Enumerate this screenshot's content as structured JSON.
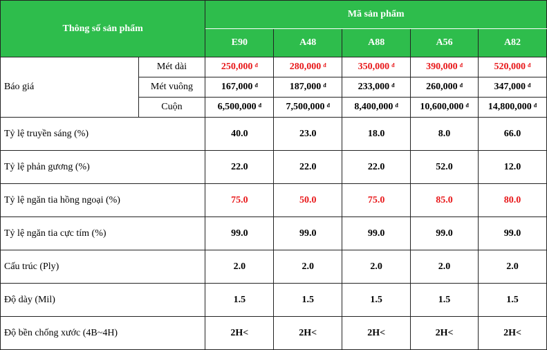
{
  "header": {
    "spec_title": "Thông số sản phẩm",
    "codes_title": "Mã sản phẩm",
    "codes": [
      "E90",
      "A48",
      "A88",
      "A56",
      "A82"
    ]
  },
  "price": {
    "label": "Báo giá",
    "currency": "đ",
    "rows": [
      {
        "unit": "Mét dài",
        "values": [
          "250,000",
          "280,000",
          "350,000",
          "390,000",
          "520,000"
        ],
        "highlight": true
      },
      {
        "unit": "Mét vuông",
        "values": [
          "167,000",
          "187,000",
          "233,000",
          "260,000",
          "347,000"
        ],
        "highlight": false
      },
      {
        "unit": "Cuộn",
        "values": [
          "6,500,000",
          "7,500,000",
          "8,400,000",
          "10,600,000",
          "14,800,000"
        ],
        "highlight": false
      }
    ]
  },
  "specs": [
    {
      "label": "Tỷ lệ truyền sáng (%)",
      "values": [
        "40.0",
        "23.0",
        "18.0",
        "8.0",
        "66.0"
      ],
      "highlight": false
    },
    {
      "label": "Tỷ lệ phản gương (%)",
      "values": [
        "22.0",
        "22.0",
        "22.0",
        "52.0",
        "12.0"
      ],
      "highlight": false
    },
    {
      "label": "Tỷ lệ ngăn tia hồng ngoại (%)",
      "values": [
        "75.0",
        "50.0",
        "75.0",
        "85.0",
        "80.0"
      ],
      "highlight": true
    },
    {
      "label": "Tỷ lệ ngăn tia cực tím (%)",
      "values": [
        "99.0",
        "99.0",
        "99.0",
        "99.0",
        "99.0"
      ],
      "highlight": false
    },
    {
      "label": "Cấu trúc (Ply)",
      "values": [
        "2.0",
        "2.0",
        "2.0",
        "2.0",
        "2.0"
      ],
      "highlight": false
    },
    {
      "label": "Độ dày (Mil)",
      "values": [
        "1.5",
        "1.5",
        "1.5",
        "1.5",
        "1.5"
      ],
      "highlight": false
    },
    {
      "label": "Độ bền chống xước (4B~4H)",
      "values": [
        "2H<",
        "2H<",
        "2H<",
        "2H<",
        "2H<"
      ],
      "highlight": false
    }
  ],
  "colors": {
    "header_bg": "#2ebd4c",
    "highlight_text": "#e8181a"
  }
}
